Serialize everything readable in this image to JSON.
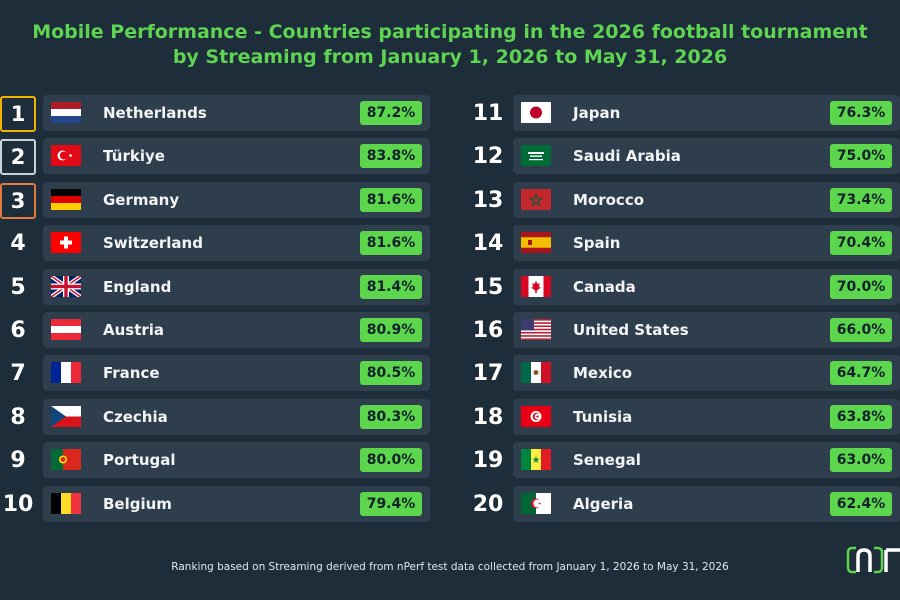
{
  "title_line1": "Mobile Performance - Countries participating in the 2026 football tournament",
  "title_line2": "by Streaming from January 1, 2026 to May 31, 2026",
  "footer": "Ranking based on Streaming derived from nPerf test data collected from January 1, 2026 to May 31, 2026",
  "colors": {
    "accent_green": "#5cd64c",
    "gold": "#f0b400",
    "silver": "#c9d1d9",
    "bronze": "#e07a3c",
    "background": "#1e2d3a",
    "row_background": "#2e3e4c"
  },
  "chart_data": {
    "type": "table",
    "columns": [
      "rank",
      "country",
      "streaming_score"
    ],
    "rows": [
      {
        "rank": "1",
        "country": "Netherlands",
        "value_label": "87.2%",
        "value": 87.2,
        "flag": "nl"
      },
      {
        "rank": "2",
        "country": "Türkiye",
        "value_label": "83.8%",
        "value": 83.8,
        "flag": "tr"
      },
      {
        "rank": "3",
        "country": "Germany",
        "value_label": "81.6%",
        "value": 81.6,
        "flag": "de"
      },
      {
        "rank": "4",
        "country": "Switzerland",
        "value_label": "81.6%",
        "value": 81.6,
        "flag": "ch"
      },
      {
        "rank": "5",
        "country": "England",
        "value_label": "81.4%",
        "value": 81.4,
        "flag": "gb"
      },
      {
        "rank": "6",
        "country": "Austria",
        "value_label": "80.9%",
        "value": 80.9,
        "flag": "at"
      },
      {
        "rank": "7",
        "country": "France",
        "value_label": "80.5%",
        "value": 80.5,
        "flag": "fr"
      },
      {
        "rank": "8",
        "country": "Czechia",
        "value_label": "80.3%",
        "value": 80.3,
        "flag": "cz"
      },
      {
        "rank": "9",
        "country": "Portugal",
        "value_label": "80.0%",
        "value": 80.0,
        "flag": "pt"
      },
      {
        "rank": "10",
        "country": "Belgium",
        "value_label": "79.4%",
        "value": 79.4,
        "flag": "be"
      },
      {
        "rank": "11",
        "country": "Japan",
        "value_label": "76.3%",
        "value": 76.3,
        "flag": "jp"
      },
      {
        "rank": "12",
        "country": "Saudi Arabia",
        "value_label": "75.0%",
        "value": 75.0,
        "flag": "sa"
      },
      {
        "rank": "13",
        "country": "Morocco",
        "value_label": "73.4%",
        "value": 73.4,
        "flag": "ma"
      },
      {
        "rank": "14",
        "country": "Spain",
        "value_label": "70.4%",
        "value": 70.4,
        "flag": "es"
      },
      {
        "rank": "15",
        "country": "Canada",
        "value_label": "70.0%",
        "value": 70.0,
        "flag": "ca"
      },
      {
        "rank": "16",
        "country": "United States",
        "value_label": "66.0%",
        "value": 66.0,
        "flag": "us"
      },
      {
        "rank": "17",
        "country": "Mexico",
        "value_label": "64.7%",
        "value": 64.7,
        "flag": "mx"
      },
      {
        "rank": "18",
        "country": "Tunisia",
        "value_label": "63.8%",
        "value": 63.8,
        "flag": "tn"
      },
      {
        "rank": "19",
        "country": "Senegal",
        "value_label": "63.0%",
        "value": 63.0,
        "flag": "sn"
      },
      {
        "rank": "20",
        "country": "Algeria",
        "value_label": "62.4%",
        "value": 62.4,
        "flag": "dz"
      }
    ]
  }
}
